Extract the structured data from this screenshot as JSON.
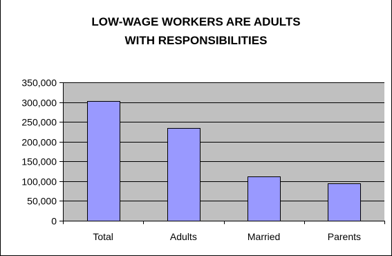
{
  "chart_data": {
    "type": "bar",
    "title_lines": [
      "LOW-WAGE WORKERS ARE ADULTS",
      "WITH RESPONSIBILITIES"
    ],
    "categories": [
      "Total",
      "Adults",
      "Married",
      "Parents"
    ],
    "values": [
      302000,
      235000,
      112000,
      95000
    ],
    "ylim": [
      0,
      350000
    ],
    "y_ticks": [
      0,
      50000,
      100000,
      150000,
      200000,
      250000,
      300000,
      350000
    ],
    "y_tick_labels": [
      "0",
      "50,000",
      "100,000",
      "150,000",
      "200,000",
      "250,000",
      "300,000",
      "350,000"
    ],
    "grid": true,
    "legend": "none",
    "colors": {
      "bar_fill": "#9999ff",
      "bar_stroke": "#000000",
      "plot_background": "#c0c0c0",
      "gridline": "#000000"
    }
  }
}
